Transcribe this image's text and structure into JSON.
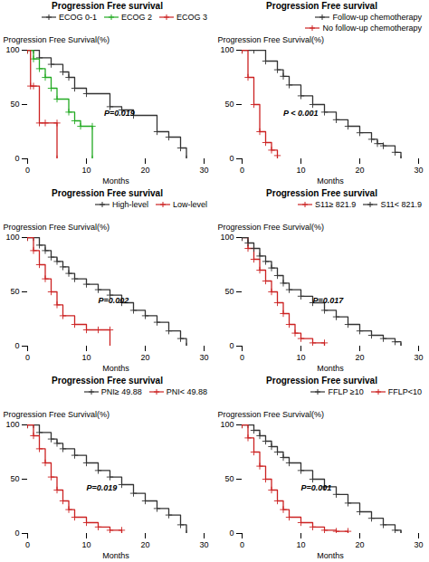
{
  "chart_data": [
    {
      "type": "step",
      "title": "Progression Free survival",
      "xlabel": "Months",
      "ylabel": "Progression Free Survival(%)",
      "xlim": [
        0,
        30
      ],
      "ylim": [
        0,
        100
      ],
      "xticks": [
        0,
        10,
        20,
        30
      ],
      "yticks": [
        0,
        50,
        100
      ],
      "grid": false,
      "legend": "upper-right",
      "marker": "plus",
      "annotations": [
        {
          "text": "P=0.019",
          "x": 13,
          "y": 42
        }
      ],
      "series": [
        {
          "name": "ECOG 0-1",
          "color": "#333333",
          "x": [
            0,
            1,
            2,
            4,
            6,
            7,
            8,
            10,
            14,
            16,
            18,
            22,
            24,
            26,
            27
          ],
          "values": [
            100,
            100,
            93,
            87,
            80,
            75,
            65,
            60,
            48,
            45,
            40,
            25,
            20,
            10,
            0
          ]
        },
        {
          "name": "ECOG 2",
          "color": "#22aa22",
          "x": [
            0,
            1,
            2,
            3,
            4,
            5,
            7,
            8,
            9,
            11,
            11
          ],
          "values": [
            100,
            92,
            83,
            75,
            65,
            55,
            43,
            35,
            30,
            30,
            0
          ]
        },
        {
          "name": "ECOG 3",
          "color": "#cc2222",
          "x": [
            0,
            0.5,
            1,
            2,
            3,
            5,
            5
          ],
          "values": [
            100,
            67,
            67,
            33,
            33,
            33,
            0
          ]
        }
      ]
    },
    {
      "type": "step",
      "title": "Progression Free survival",
      "xlabel": "Months",
      "ylabel": "Progression Free Survival(%)",
      "xlim": [
        0,
        30
      ],
      "ylim": [
        0,
        100
      ],
      "xticks": [
        0,
        10,
        20,
        30
      ],
      "yticks": [
        0,
        50,
        100
      ],
      "grid": false,
      "legend": "upper-right",
      "marker": "plus",
      "annotations": [
        {
          "text": "P < 0.001",
          "x": 7,
          "y": 42
        }
      ],
      "series": [
        {
          "name": "Follow-up chemotherapy",
          "color": "#333333",
          "x": [
            0,
            2,
            4,
            6,
            7,
            8,
            10,
            12,
            14,
            16,
            18,
            20,
            22,
            23,
            24,
            26,
            27
          ],
          "values": [
            100,
            100,
            90,
            82,
            76,
            68,
            58,
            50,
            43,
            36,
            30,
            24,
            18,
            14,
            12,
            6,
            0
          ]
        },
        {
          "name": "No follow-up chemotherapy",
          "color": "#cc2222",
          "x": [
            0,
            1,
            2,
            3,
            4,
            5,
            6,
            6
          ],
          "values": [
            100,
            75,
            50,
            25,
            15,
            8,
            3,
            0
          ]
        }
      ]
    },
    {
      "type": "step",
      "title": "Progression Free survival",
      "xlabel": "Months",
      "ylabel": "Progression Free Survival(%)",
      "xlim": [
        0,
        30
      ],
      "ylim": [
        0,
        100
      ],
      "xticks": [
        0,
        10,
        20,
        30
      ],
      "yticks": [
        0,
        50,
        100
      ],
      "grid": false,
      "legend": "upper-right",
      "marker": "plus",
      "annotations": [
        {
          "text": "P=0.002",
          "x": 12,
          "y": 42
        }
      ],
      "series": [
        {
          "name": "High-level",
          "color": "#333333",
          "x": [
            0,
            1,
            2,
            3,
            4,
            5,
            6,
            7,
            8,
            10,
            12,
            14,
            16,
            18,
            20,
            22,
            24,
            26,
            27
          ],
          "values": [
            100,
            100,
            93,
            88,
            82,
            78,
            73,
            67,
            62,
            57,
            52,
            47,
            40,
            33,
            28,
            22,
            14,
            7,
            0
          ]
        },
        {
          "name": "Low-level",
          "color": "#cc2222",
          "x": [
            0,
            1,
            2,
            3,
            4,
            5,
            6,
            8,
            10,
            12,
            14,
            14
          ],
          "values": [
            100,
            88,
            75,
            62,
            50,
            38,
            28,
            20,
            15,
            15,
            15,
            0
          ]
        }
      ]
    },
    {
      "type": "step",
      "title": "Progression Free survival",
      "xlabel": "Months",
      "ylabel": "Progression Free Survival(%)",
      "xlim": [
        0,
        30
      ],
      "ylim": [
        0,
        100
      ],
      "xticks": [
        0,
        10,
        20,
        30
      ],
      "yticks": [
        0,
        50,
        100
      ],
      "grid": false,
      "legend": "upper-right",
      "marker": "plus",
      "annotations": [
        {
          "text": "P=0.017",
          "x": 12,
          "y": 42
        }
      ],
      "series": [
        {
          "name": "S11≥ 821.9",
          "color": "#cc2222",
          "x": [
            0,
            1,
            2,
            3,
            4,
            5,
            6,
            7,
            8,
            9,
            10,
            12,
            14,
            14
          ],
          "values": [
            100,
            90,
            80,
            70,
            60,
            50,
            40,
            30,
            20,
            12,
            7,
            3,
            3,
            0
          ]
        },
        {
          "name": "S11< 821.9",
          "color": "#333333",
          "x": [
            0,
            1,
            2,
            3,
            4,
            5,
            6,
            7,
            8,
            10,
            12,
            14,
            16,
            18,
            20,
            22,
            24,
            26,
            27
          ],
          "values": [
            100,
            95,
            90,
            83,
            78,
            72,
            65,
            58,
            52,
            46,
            40,
            33,
            27,
            20,
            14,
            10,
            7,
            4,
            0
          ]
        }
      ]
    },
    {
      "type": "step",
      "title": "Progression Free survival",
      "xlabel": "Months",
      "ylabel": "Progression Free Survival(%)",
      "xlim": [
        0,
        30
      ],
      "ylim": [
        0,
        100
      ],
      "xticks": [
        0,
        10,
        20,
        30
      ],
      "yticks": [
        0,
        50,
        100
      ],
      "grid": false,
      "legend": "upper-right",
      "marker": "plus",
      "annotations": [
        {
          "text": "P=0.019",
          "x": 10,
          "y": 42
        }
      ],
      "series": [
        {
          "name": "PNI≥ 49.88",
          "color": "#333333",
          "x": [
            0,
            1,
            2,
            4,
            5,
            6,
            8,
            10,
            12,
            14,
            16,
            18,
            20,
            22,
            24,
            26,
            27
          ],
          "values": [
            100,
            100,
            93,
            87,
            83,
            78,
            72,
            65,
            58,
            52,
            45,
            37,
            30,
            23,
            17,
            8,
            0
          ]
        },
        {
          "name": "PNI< 49.88",
          "color": "#cc2222",
          "x": [
            0,
            1,
            2,
            3,
            4,
            5,
            6,
            7,
            8,
            10,
            12,
            14,
            16,
            16
          ],
          "values": [
            100,
            90,
            78,
            65,
            52,
            40,
            30,
            22,
            15,
            10,
            6,
            3,
            3,
            0
          ]
        }
      ]
    },
    {
      "type": "step",
      "title": "Progression Free survival",
      "xlabel": "Months",
      "ylabel": "Progression Free Survival(%)",
      "xlim": [
        0,
        30
      ],
      "ylim": [
        0,
        100
      ],
      "xticks": [
        0,
        10,
        20,
        30
      ],
      "yticks": [
        0,
        50,
        100
      ],
      "grid": false,
      "legend": "upper-right",
      "marker": "plus",
      "annotations": [
        {
          "text": "P=0.001",
          "x": 10,
          "y": 42
        }
      ],
      "series": [
        {
          "name": "FFLP ≥10",
          "color": "#333333",
          "x": [
            0,
            1,
            2,
            3,
            4,
            5,
            6,
            7,
            8,
            10,
            12,
            14,
            16,
            18,
            20,
            22,
            24,
            26,
            27
          ],
          "values": [
            100,
            100,
            95,
            90,
            85,
            80,
            75,
            70,
            65,
            58,
            50,
            43,
            36,
            28,
            20,
            14,
            8,
            3,
            0
          ]
        },
        {
          "name": "FFLP<10",
          "color": "#cc2222",
          "x": [
            0,
            1,
            2,
            3,
            4,
            5,
            6,
            7,
            8,
            10,
            12,
            14,
            16,
            18,
            18
          ],
          "values": [
            100,
            88,
            75,
            62,
            50,
            40,
            30,
            22,
            15,
            10,
            6,
            3,
            2,
            2,
            0
          ]
        }
      ]
    }
  ]
}
